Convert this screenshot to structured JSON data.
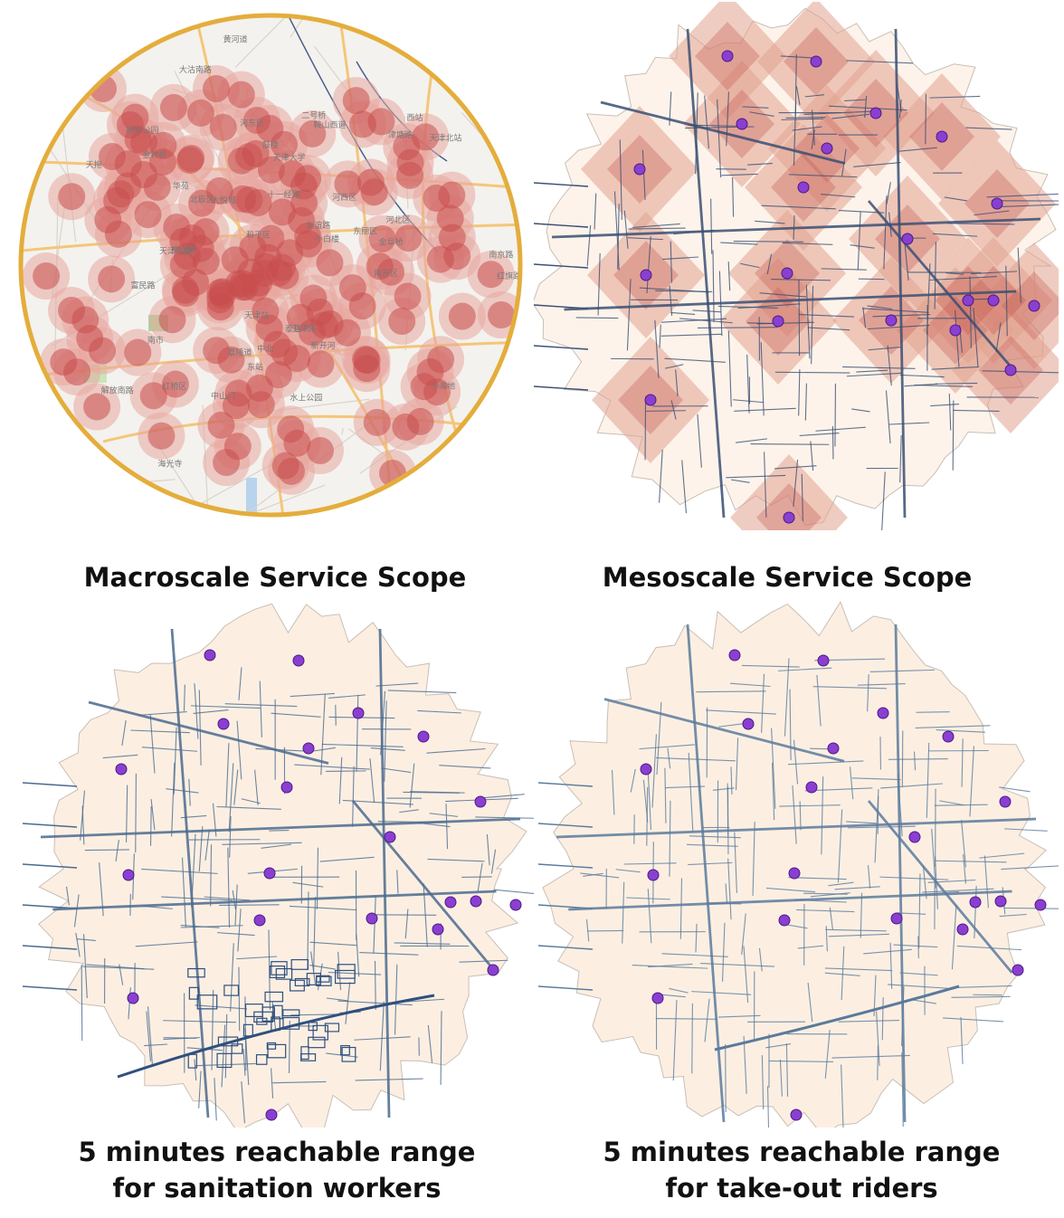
{
  "panels": [
    {
      "id": "macro",
      "caption": "Macroscale Service Scope",
      "map_labels": [
        "中北",
        "北辰区",
        "红桥区",
        "南开区",
        "河西区",
        "河东区",
        "天津站",
        "金钟桥",
        "西站",
        "河北区",
        "东丽区",
        "天津大学",
        "和平区",
        "中山门",
        "大悦城",
        "天津之眼",
        "鼓楼",
        "海光寺",
        "南市",
        "小白楼",
        "十一经路",
        "南京路",
        "友谊路",
        "解放南路",
        "二号桥",
        "新开河",
        "天津北站",
        "中山路",
        "金阜桥",
        "东站",
        "泰达",
        "小海地",
        "华苑",
        "水上公园",
        "鞍山西道",
        "天拖",
        "卫津路",
        "黄河道",
        "红旗路",
        "大沽南路",
        "嘉陵道",
        "津塘路",
        "程林公园",
        "富民路"
      ],
      "colors": {
        "ring": "#e4ad3c",
        "buffer": "#c94f4f",
        "buffer_halo": "#e8a8a0",
        "road": "#f4c67a",
        "base": "#f4f2ee"
      }
    },
    {
      "id": "meso",
      "caption": "Mesoscale Service Scope",
      "colors": {
        "region": "#fdf3ea",
        "coverage": "#e2a38f",
        "coverage_dark": "#c75c52",
        "road": "#3a4f73",
        "point": "#8a3fd1"
      }
    },
    {
      "id": "sanitation",
      "caption_line1": "5 minutes reachable range",
      "caption_line2": "for sanitation workers",
      "colors": {
        "region": "#fcefe2",
        "road": "#4a6a8e",
        "point": "#8a3fd1"
      }
    },
    {
      "id": "takeout",
      "caption_line1": "5 minutes reachable range",
      "caption_line2": "for take-out riders",
      "colors": {
        "region": "#fcefe2",
        "road": "#5a7a9c",
        "point": "#8a3fd1"
      }
    }
  ]
}
